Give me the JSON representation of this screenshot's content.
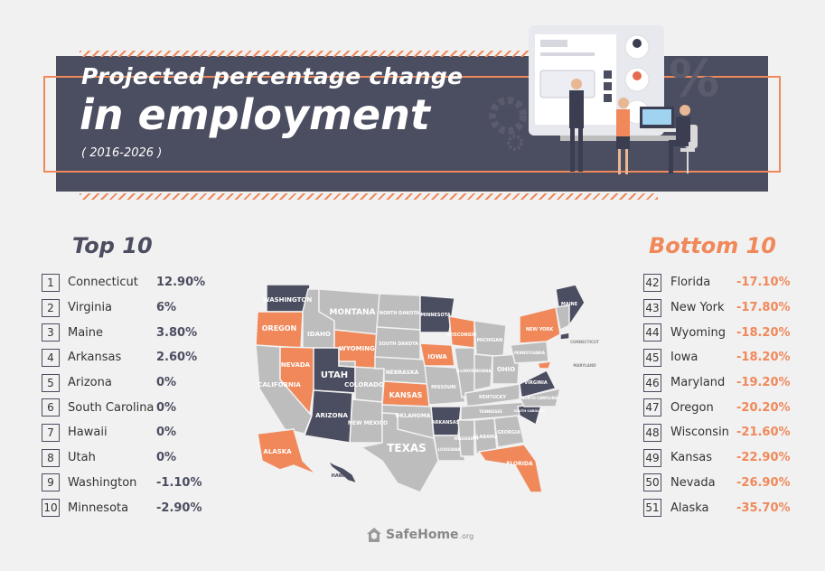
{
  "header": {
    "title_line1": "Projected percentage change",
    "title_line2": "in employment",
    "subtitle": "( 2016-2026 )",
    "percent_symbol": "%"
  },
  "top10": {
    "heading": "Top 10",
    "items": [
      {
        "rank": "1",
        "state": "Connecticut",
        "value": "12.90%"
      },
      {
        "rank": "2",
        "state": "Virginia",
        "value": "6%"
      },
      {
        "rank": "3",
        "state": "Maine",
        "value": "3.80%"
      },
      {
        "rank": "4",
        "state": "Arkansas",
        "value": "2.60%"
      },
      {
        "rank": "5",
        "state": "Arizona",
        "value": "0%"
      },
      {
        "rank": "6",
        "state": "South Carolina",
        "value": "0%"
      },
      {
        "rank": "7",
        "state": "Hawaii",
        "value": "0%"
      },
      {
        "rank": "8",
        "state": "Utah",
        "value": "0%"
      },
      {
        "rank": "9",
        "state": "Washington",
        "value": "-1.10%"
      },
      {
        "rank": "10",
        "state": "Minnesota",
        "value": "-2.90%"
      }
    ]
  },
  "bottom10": {
    "heading": "Bottom 10",
    "items": [
      {
        "rank": "42",
        "state": "Florida",
        "value": "-17.10%"
      },
      {
        "rank": "43",
        "state": "New York",
        "value": "-17.80%"
      },
      {
        "rank": "44",
        "state": "Wyoming",
        "value": "-18.20%"
      },
      {
        "rank": "45",
        "state": "Iowa",
        "value": "-18.20%"
      },
      {
        "rank": "46",
        "state": "Maryland",
        "value": "-19.20%"
      },
      {
        "rank": "47",
        "state": "Oregon",
        "value": "-20.20%"
      },
      {
        "rank": "48",
        "state": "Wisconsin",
        "value": "-21.60%"
      },
      {
        "rank": "49",
        "state": "Kansas",
        "value": "-22.90%"
      },
      {
        "rank": "50",
        "state": "Nevada",
        "value": "-26.90%"
      },
      {
        "rank": "51",
        "state": "Alaska",
        "value": "-35.70%"
      }
    ]
  },
  "map_labels": {
    "washington": "WASHINGTON",
    "oregon": "OREGON",
    "california": "CALIFORNIA",
    "idaho": "IDAHO",
    "nevada": "NEVADA",
    "utah": "UTAH",
    "arizona": "ARIZONA",
    "montana": "MONTANA",
    "wyoming": "WYOMING",
    "colorado": "COLORADO",
    "new_mexico": "NEW MEXICO",
    "north_dakota": "NORTH DAKOTA",
    "south_dakota": "SOUTH DAKOTA",
    "nebraska": "NEBRASKA",
    "kansas": "KANSAS",
    "oklahoma": "OKLAHOMA",
    "texas": "TEXAS",
    "minnesota": "MINNESOTA",
    "iowa": "IOWA",
    "missouri": "MISSOURI",
    "arkansas": "ARKANSAS",
    "louisiana": "LOUISIANA",
    "wisconsin": "WISCONSIN",
    "illinois": "ILLINOIS",
    "michigan": "MICHIGAN",
    "indiana": "INDIANA",
    "ohio": "OHIO",
    "kentucky": "KENTUCKY",
    "tennessee": "TENNESSEE",
    "mississippi": "MISSISSIPPI",
    "alabama": "ALABAMA",
    "georgia": "GEORGIA",
    "florida": "FLORIDA",
    "south_carolina": "SOUTH CAROLINA",
    "north_carolina": "NORTH CAROLINA",
    "virginia": "VIRGINIA",
    "pennsylvania": "PENNSYLVANIA",
    "new_york": "NEW YORK",
    "maine": "MAINE",
    "alaska": "ALASKA",
    "hawaii": "HAWAII",
    "connecticut": "CONNECTICUT",
    "maryland": "MARYLAND"
  },
  "footer": {
    "brand": "SafeHome",
    "tld": ".org"
  },
  "colors": {
    "dark": "#4b4d60",
    "orange": "#f0885a",
    "grey": "#bdbdbd",
    "background": "#f1f1f1"
  }
}
